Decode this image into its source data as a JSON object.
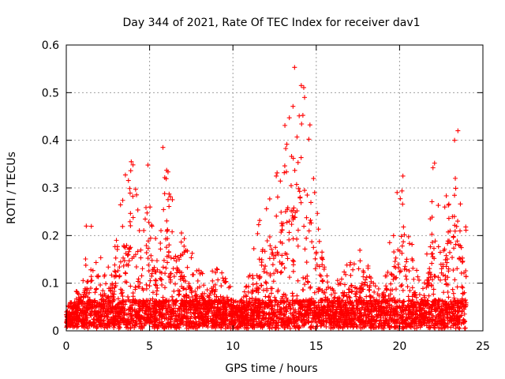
{
  "chart_data": {
    "type": "scatter",
    "title": "Day 344 of 2021, Rate Of TEC Index for receiver dav1",
    "xlabel": "GPS time / hours",
    "ylabel": "ROTI / TECUs",
    "xlim": [
      0,
      25
    ],
    "ylim": [
      0,
      0.6
    ],
    "xticks": [
      "0",
      "5",
      "10",
      "15",
      "20",
      "25"
    ],
    "xtick_values": [
      0,
      5,
      10,
      15,
      20,
      25
    ],
    "yticks": [
      "0",
      "0.1",
      "0.2",
      "0.3",
      "0.4",
      "0.5",
      "0.6"
    ],
    "ytick_values": [
      0,
      0.1,
      0.2,
      0.3,
      0.4,
      0.5,
      0.6
    ],
    "grid": true,
    "marker": "+",
    "color": "#ff0000",
    "series": [
      {
        "envelope_hours": [
          0,
          0.5,
          1,
          1.5,
          2,
          2.5,
          3,
          3.5,
          4,
          4.5,
          5,
          5.5,
          6,
          6.5,
          7,
          7.5,
          8,
          8.5,
          9,
          9.5,
          10,
          10.5,
          11,
          11.5,
          12,
          12.5,
          13,
          13.5,
          14,
          14.5,
          15,
          15.5,
          16,
          16.5,
          17,
          17.5,
          18,
          18.5,
          19,
          19.5,
          20,
          20.5,
          21,
          21.5,
          22,
          22.5,
          23,
          23.5,
          24
        ],
        "envelope_roti": [
          0.04,
          0.08,
          0.13,
          0.22,
          0.16,
          0.14,
          0.2,
          0.33,
          0.36,
          0.22,
          0.35,
          0.15,
          0.39,
          0.24,
          0.2,
          0.17,
          0.13,
          0.13,
          0.14,
          0.13,
          0.08,
          0.06,
          0.13,
          0.22,
          0.3,
          0.33,
          0.42,
          0.48,
          0.55,
          0.5,
          0.3,
          0.13,
          0.1,
          0.12,
          0.15,
          0.17,
          0.2,
          0.1,
          0.13,
          0.2,
          0.33,
          0.25,
          0.13,
          0.11,
          0.35,
          0.3,
          0.29,
          0.42,
          0.23
        ],
        "peaks": [
          {
            "x": 13.7,
            "y": 0.553
          },
          {
            "x": 14.1,
            "y": 0.515
          },
          {
            "x": 14.3,
            "y": 0.49
          },
          {
            "x": 5.8,
            "y": 0.385
          },
          {
            "x": 3.9,
            "y": 0.355
          },
          {
            "x": 4.9,
            "y": 0.348
          },
          {
            "x": 23.5,
            "y": 0.42
          },
          {
            "x": 23.3,
            "y": 0.4
          },
          {
            "x": 22.1,
            "y": 0.352
          },
          {
            "x": 20.2,
            "y": 0.325
          },
          {
            "x": 12.6,
            "y": 0.325
          },
          {
            "x": 1.2,
            "y": 0.22
          }
        ]
      }
    ]
  }
}
